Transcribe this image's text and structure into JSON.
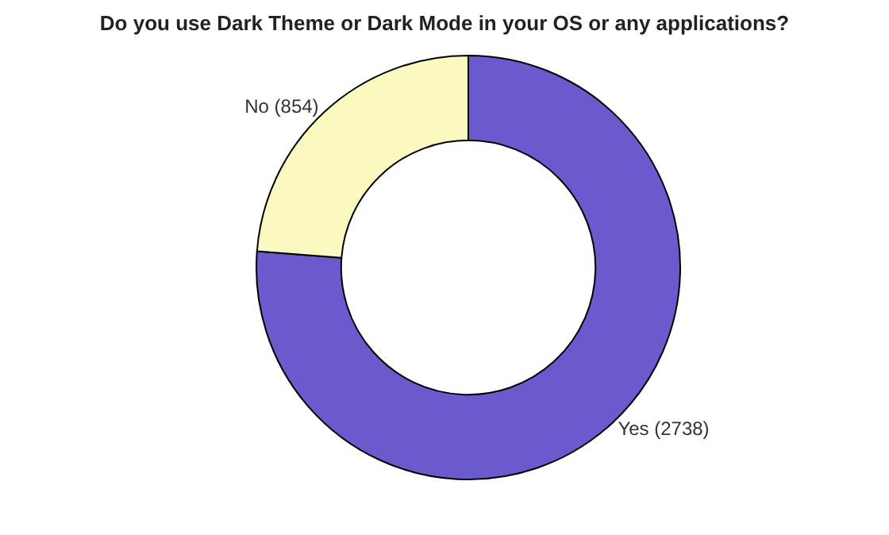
{
  "chart_data": {
    "type": "donut",
    "title": "Do you use Dark Theme or Dark Mode in your OS or any applications?",
    "categories": [
      "Yes (2738)",
      "No (854)"
    ],
    "values": [
      2738,
      854
    ],
    "colors": [
      "#6a5acd",
      "#fafac0"
    ],
    "legend": false
  }
}
